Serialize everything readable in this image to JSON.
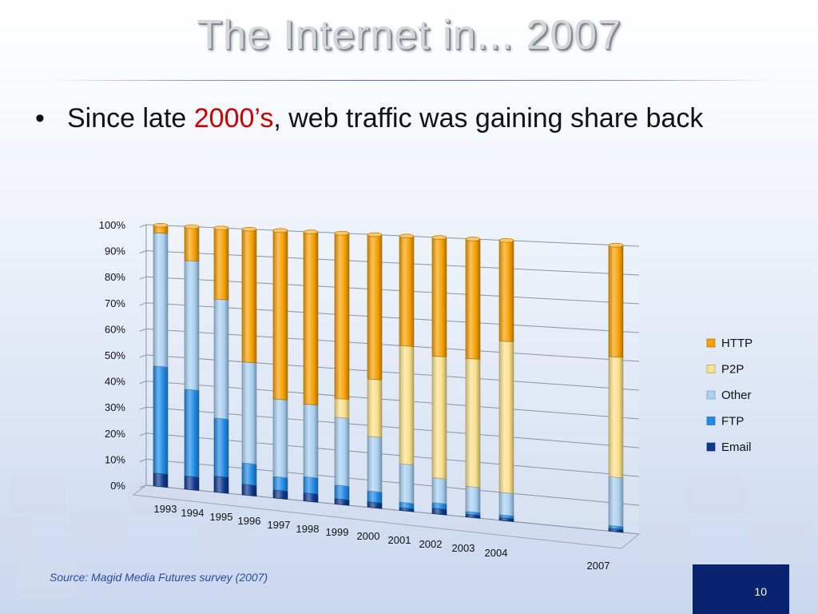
{
  "slide": {
    "title": "The Internet in... 2007",
    "bullet": {
      "prefix": "Since late ",
      "highlight": "2000’s",
      "suffix": ", web traffic was gaining share back"
    },
    "source": "Source: Magid Media Futures survey (2007)",
    "page_number": "10"
  },
  "chart_data": {
    "type": "bar",
    "stacked": true,
    "percent": true,
    "categories": [
      "1993",
      "1994",
      "1995",
      "1996",
      "1997",
      "1998",
      "1999",
      "2000",
      "2001",
      "2002",
      "2003",
      "2004",
      "2007"
    ],
    "yticks": [
      "0%",
      "10%",
      "20%",
      "30%",
      "40%",
      "50%",
      "60%",
      "70%",
      "80%",
      "90%",
      "100%"
    ],
    "ylim": [
      0,
      100
    ],
    "grid": true,
    "legend_position": "right",
    "series": [
      {
        "name": "Email",
        "color": "#0d3a8f",
        "values": [
          5,
          5,
          6,
          4,
          3,
          3,
          2,
          2,
          1,
          2,
          1,
          1,
          1
        ]
      },
      {
        "name": "FTP",
        "color": "#1f8ce6",
        "values": [
          41,
          33,
          22,
          8,
          5,
          6,
          5,
          4,
          2,
          2,
          1,
          1,
          1
        ]
      },
      {
        "name": "Other",
        "color": "#a9d1f2",
        "values": [
          51,
          49,
          45,
          38,
          29,
          27,
          25,
          20,
          14,
          9,
          9,
          8,
          17
        ]
      },
      {
        "name": "P2P",
        "color": "#fbe08a",
        "values": [
          0,
          0,
          0,
          0,
          0,
          0,
          7,
          21,
          43,
          44,
          46,
          54,
          42
        ]
      },
      {
        "name": "HTTP",
        "color": "#f7a000",
        "values": [
          3,
          13,
          27,
          50,
          63,
          64,
          61,
          53,
          40,
          43,
          43,
          36,
          39
        ]
      }
    ]
  }
}
